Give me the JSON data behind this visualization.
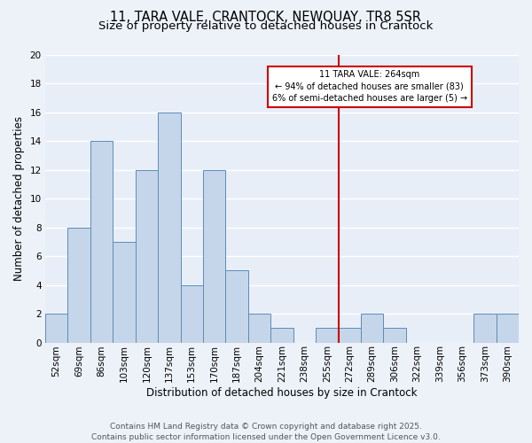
{
  "title": "11, TARA VALE, CRANTOCK, NEWQUAY, TR8 5SR",
  "subtitle": "Size of property relative to detached houses in Crantock",
  "xlabel": "Distribution of detached houses by size in Crantock",
  "ylabel": "Number of detached properties",
  "categories": [
    "52sqm",
    "69sqm",
    "86sqm",
    "103sqm",
    "120sqm",
    "137sqm",
    "153sqm",
    "170sqm",
    "187sqm",
    "204sqm",
    "221sqm",
    "238sqm",
    "255sqm",
    "272sqm",
    "289sqm",
    "306sqm",
    "322sqm",
    "339sqm",
    "356sqm",
    "373sqm",
    "390sqm"
  ],
  "values": [
    2,
    8,
    14,
    7,
    12,
    16,
    4,
    12,
    5,
    2,
    1,
    0,
    1,
    1,
    2,
    1,
    0,
    0,
    0,
    2,
    2
  ],
  "bar_color": "#c5d6ea",
  "bar_edge_color": "#5b8db8",
  "background_color": "#e8eef8",
  "grid_color": "#ffffff",
  "vline_color": "#cc0000",
  "annotation_text": "11 TARA VALE: 264sqm\n← 94% of detached houses are smaller (83)\n6% of semi-detached houses are larger (5) →",
  "annotation_box_color": "#ffffff",
  "annotation_box_edge_color": "#cc0000",
  "ylim": [
    0,
    20
  ],
  "yticks": [
    0,
    2,
    4,
    6,
    8,
    10,
    12,
    14,
    16,
    18,
    20
  ],
  "footer": "Contains HM Land Registry data © Crown copyright and database right 2025.\nContains public sector information licensed under the Open Government Licence v3.0.",
  "title_fontsize": 10.5,
  "subtitle_fontsize": 9.5,
  "axis_label_fontsize": 8.5,
  "tick_fontsize": 7.5,
  "footer_fontsize": 6.5,
  "annotation_fontsize": 7.0
}
